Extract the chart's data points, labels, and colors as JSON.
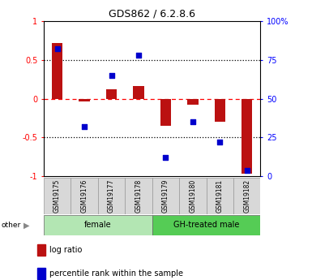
{
  "title": "GDS862 / 6.2.8.6",
  "samples": [
    "GSM19175",
    "GSM19176",
    "GSM19177",
    "GSM19178",
    "GSM19179",
    "GSM19180",
    "GSM19181",
    "GSM19182"
  ],
  "log_ratio": [
    0.72,
    -0.04,
    0.12,
    0.16,
    -0.35,
    -0.08,
    -0.3,
    -0.97
  ],
  "percentile_rank": [
    82,
    32,
    65,
    78,
    12,
    35,
    22,
    4
  ],
  "groups": [
    {
      "label": "female",
      "start": 0,
      "end": 4,
      "color": "#b3e6b3"
    },
    {
      "label": "GH-treated male",
      "start": 4,
      "end": 8,
      "color": "#55cc55"
    }
  ],
  "bar_color": "#bb1111",
  "dot_color": "#0000cc",
  "ylim_left": [
    -1,
    1
  ],
  "ylim_right": [
    0,
    100
  ],
  "yticks_left": [
    -1,
    -0.5,
    0,
    0.5,
    1
  ],
  "yticks_right": [
    0,
    25,
    50,
    75,
    100
  ],
  "ytick_labels_left": [
    "-1",
    "-0.5",
    "0",
    "0.5",
    "1"
  ],
  "ytick_labels_right": [
    "0",
    "25",
    "50",
    "75",
    "100%"
  ],
  "legend_items": [
    "log ratio",
    "percentile rank within the sample"
  ],
  "legend_colors": [
    "#bb1111",
    "#0000cc"
  ]
}
